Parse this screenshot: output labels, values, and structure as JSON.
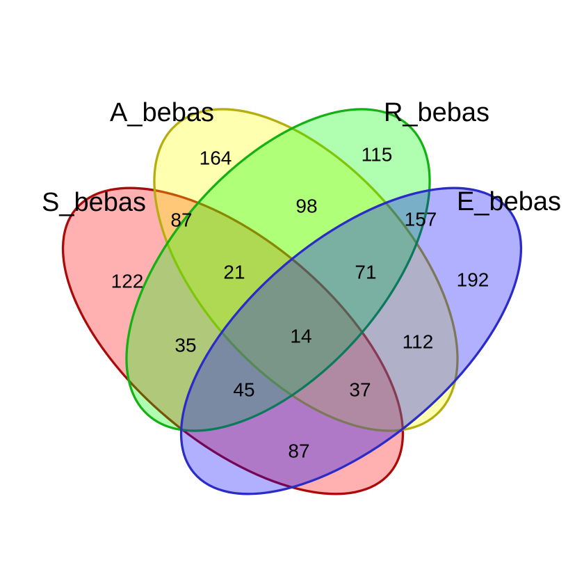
{
  "background": "#ffffff",
  "chart_data": {
    "type": "venn",
    "title": "",
    "legend_position": "none",
    "grid": false,
    "sets": [
      {
        "name": "S_bebas",
        "stroke": "#AA0A0A",
        "fill": "#FF0000"
      },
      {
        "name": "A_bebas",
        "stroke": "#B5AE10",
        "fill": "#FFFF00"
      },
      {
        "name": "R_bebas",
        "stroke": "#14B014",
        "fill": "#00FF00"
      },
      {
        "name": "E_bebas",
        "stroke": "#2B2BC8",
        "fill": "#0000FF"
      }
    ],
    "regions": [
      {
        "sets": [
          "S_bebas"
        ],
        "value": 122
      },
      {
        "sets": [
          "A_bebas"
        ],
        "value": 164
      },
      {
        "sets": [
          "R_bebas"
        ],
        "value": 115
      },
      {
        "sets": [
          "E_bebas"
        ],
        "value": 192
      },
      {
        "sets": [
          "S_bebas",
          "A_bebas"
        ],
        "value": 87
      },
      {
        "sets": [
          "A_bebas",
          "R_bebas"
        ],
        "value": 98
      },
      {
        "sets": [
          "R_bebas",
          "E_bebas"
        ],
        "value": 157
      },
      {
        "sets": [
          "S_bebas",
          "R_bebas"
        ],
        "value": 35
      },
      {
        "sets": [
          "A_bebas",
          "E_bebas"
        ],
        "value": 112
      },
      {
        "sets": [
          "S_bebas",
          "E_bebas"
        ],
        "value": 87
      },
      {
        "sets": [
          "S_bebas",
          "A_bebas",
          "R_bebas"
        ],
        "value": 21
      },
      {
        "sets": [
          "A_bebas",
          "R_bebas",
          "E_bebas"
        ],
        "value": 71
      },
      {
        "sets": [
          "S_bebas",
          "R_bebas",
          "E_bebas"
        ],
        "value": 45
      },
      {
        "sets": [
          "S_bebas",
          "A_bebas",
          "E_bebas"
        ],
        "value": 37
      },
      {
        "sets": [
          "S_bebas",
          "A_bebas",
          "R_bebas",
          "E_bebas"
        ],
        "value": 14
      }
    ]
  }
}
